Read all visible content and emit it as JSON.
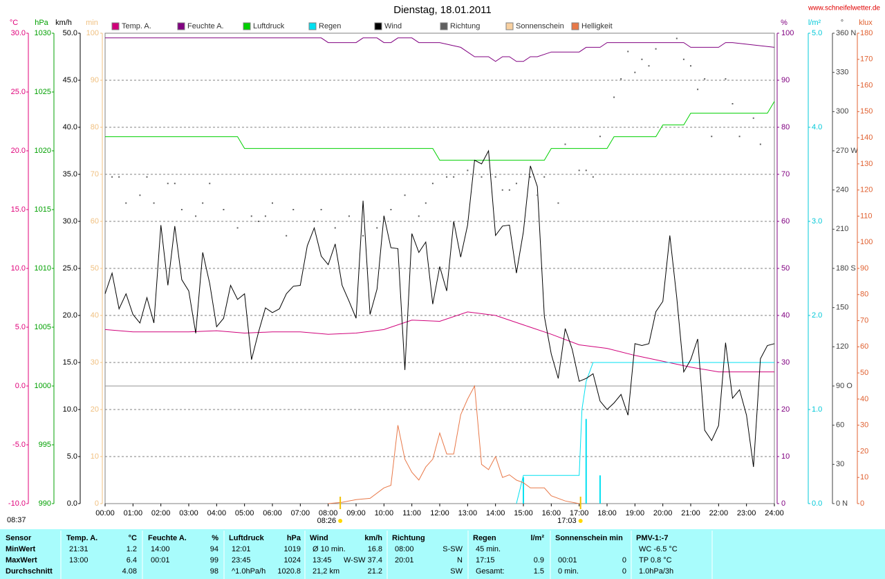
{
  "chart_data": {
    "type": "line",
    "title": "Dienstag, 18.01.2011",
    "site": "www.schneifelwetter.de",
    "updated": "08:37",
    "xlim": [
      0,
      24
    ],
    "xticks": [
      {
        "value": 0,
        "label": "00:00"
      },
      {
        "value": 1,
        "label": "01:00"
      },
      {
        "value": 2,
        "label": "02:00"
      },
      {
        "value": 3,
        "label": "03:00"
      },
      {
        "value": 4,
        "label": "04:00"
      },
      {
        "value": 5,
        "label": "05:00"
      },
      {
        "value": 6,
        "label": "06:00"
      },
      {
        "value": 7,
        "label": "07:00"
      },
      {
        "value": 8,
        "label": "08:00"
      },
      {
        "value": 9,
        "label": "09:00"
      },
      {
        "value": 10,
        "label": "10:00"
      },
      {
        "value": 11,
        "label": "11:00"
      },
      {
        "value": 12,
        "label": "12:00"
      },
      {
        "value": 13,
        "label": "13:00"
      },
      {
        "value": 14,
        "label": "14:00"
      },
      {
        "value": 15,
        "label": "15:00"
      },
      {
        "value": 16,
        "label": "16:00"
      },
      {
        "value": 17,
        "label": "17:00"
      },
      {
        "value": 18,
        "label": "18:00"
      },
      {
        "value": 19,
        "label": "19:00"
      },
      {
        "value": 20,
        "label": "20:00"
      },
      {
        "value": 21,
        "label": "21:00"
      },
      {
        "value": 22,
        "label": "22:00"
      },
      {
        "value": 23,
        "label": "23:00"
      },
      {
        "value": 24,
        "label": "24:00"
      }
    ],
    "axes": [
      {
        "unit": "°C",
        "side": "left",
        "color": "#e0007a",
        "lim": [
          -10,
          30
        ],
        "zero_line": true,
        "ticks": [
          {
            "value": 30,
            "label": "30.0"
          },
          {
            "value": 25,
            "label": "25.0"
          },
          {
            "value": 20,
            "label": "20.0"
          },
          {
            "value": 15,
            "label": "15.0"
          },
          {
            "value": 10,
            "label": "10.0"
          },
          {
            "value": 5,
            "label": "5.0"
          },
          {
            "value": 0,
            "label": "0.0"
          },
          {
            "value": -5,
            "label": "-5.0"
          },
          {
            "value": -10,
            "label": "-10.0"
          }
        ]
      },
      {
        "unit": "hPa",
        "side": "left",
        "color": "#00a000",
        "lim": [
          990,
          1030
        ],
        "ticks": [
          1030,
          1025,
          1020,
          1015,
          1010,
          1005,
          1000,
          995,
          990
        ]
      },
      {
        "unit": "km/h",
        "side": "left",
        "color": "#000000",
        "lim": [
          0,
          50
        ],
        "grid": true,
        "ticks": [
          {
            "value": 50,
            "label": "50.0"
          },
          {
            "value": 45,
            "label": "45.0"
          },
          {
            "value": 40,
            "label": "40.0"
          },
          {
            "value": 35,
            "label": "35.0"
          },
          {
            "value": 30,
            "label": "30.0"
          },
          {
            "value": 25,
            "label": "25.0"
          },
          {
            "value": 20,
            "label": "20.0"
          },
          {
            "value": 15,
            "label": "15.0"
          },
          {
            "value": 10,
            "label": "10.0"
          },
          {
            "value": 5,
            "label": "5.0"
          },
          {
            "value": 0,
            "label": "0.0"
          }
        ]
      },
      {
        "unit": "min",
        "side": "left",
        "color": "#f0c080",
        "lim": [
          0,
          100
        ],
        "ticks": [
          100,
          90,
          80,
          70,
          60,
          50,
          40,
          30,
          20,
          10,
          0
        ]
      },
      {
        "unit": "%",
        "side": "right",
        "color": "#800080",
        "lim": [
          0,
          100
        ],
        "ticks": [
          100,
          90,
          80,
          70,
          60,
          50,
          40,
          30,
          20,
          10,
          0
        ]
      },
      {
        "unit": "l/m²",
        "side": "right",
        "color": "#00c8d8",
        "lim": [
          0,
          5
        ],
        "ticks": [
          {
            "value": 5,
            "label": "5.0"
          },
          {
            "value": 4,
            "label": "4.0"
          },
          {
            "value": 3,
            "label": "3.0"
          },
          {
            "value": 2,
            "label": "2.0"
          },
          {
            "value": 1,
            "label": "1.0"
          },
          {
            "value": 0,
            "label": "0.0"
          }
        ]
      },
      {
        "unit": "°",
        "side": "right",
        "color": "#404040",
        "lim": [
          0,
          360
        ],
        "ticks": [
          {
            "value": 360,
            "label": "360 N"
          },
          330,
          300,
          {
            "value": 270,
            "label": "270 W"
          },
          240,
          210,
          {
            "value": 180,
            "label": "180 S"
          },
          150,
          120,
          {
            "value": 90,
            "label": "90 O"
          },
          60,
          30,
          {
            "value": 0,
            "label": "0 N"
          }
        ]
      },
      {
        "unit": "klux",
        "side": "right",
        "color": "#e06030",
        "lim": [
          0,
          180
        ],
        "ticks": [
          180,
          170,
          160,
          150,
          140,
          130,
          120,
          110,
          100,
          90,
          80,
          70,
          60,
          50,
          40,
          30,
          20,
          10,
          0
        ]
      }
    ],
    "series": [
      {
        "name": "Temp. A.",
        "color": "#d0007a",
        "axis": "°C",
        "style": "line",
        "x": [
          0,
          1,
          2,
          3,
          4,
          5,
          6,
          7,
          8,
          9,
          10,
          11,
          12,
          13,
          14,
          15,
          16,
          17,
          18,
          19,
          20,
          21,
          22,
          23,
          24
        ],
        "values": [
          4.8,
          4.6,
          4.6,
          4.6,
          4.7,
          4.5,
          4.6,
          4.6,
          4.4,
          4.5,
          4.8,
          5.6,
          5.5,
          6.3,
          6.0,
          5.2,
          4.4,
          3.5,
          3.2,
          2.6,
          2.1,
          1.6,
          1.2,
          1.2,
          1.2
        ]
      },
      {
        "name": "Feuchte A.",
        "color": "#800080",
        "axis": "%",
        "style": "line",
        "x": [
          0,
          7.75,
          8,
          9,
          9.25,
          9.75,
          10,
          10.25,
          10.5,
          11,
          11.25,
          12,
          12.75,
          13.25,
          13.75,
          14,
          14.25,
          14.5,
          14.75,
          15,
          15.25,
          15.5,
          16,
          16.25,
          17,
          17.25,
          17.75,
          18,
          18.5,
          20.75,
          21,
          22,
          22.25,
          22.5,
          24
        ],
        "values": [
          99,
          99,
          98,
          98,
          99,
          99,
          98,
          98,
          99,
          99,
          98,
          98,
          97,
          95,
          95,
          94,
          95,
          95,
          94,
          94,
          95,
          95,
          96,
          96,
          96,
          97,
          97,
          98,
          98,
          98,
          97,
          97,
          98,
          98,
          97
        ]
      },
      {
        "name": "Luftdruck",
        "color": "#00d000",
        "axis": "hPa",
        "style": "line",
        "x": [
          0,
          4.75,
          5,
          11.75,
          12,
          15.75,
          16,
          18,
          18.25,
          19.75,
          20,
          20.75,
          21,
          23.75,
          24
        ],
        "values": [
          1021.2,
          1021.2,
          1020.2,
          1020.2,
          1019.2,
          1019.2,
          1020.2,
          1020.2,
          1021.2,
          1021.2,
          1022.2,
          1022.2,
          1023.2,
          1023.2,
          1024.2
        ]
      },
      {
        "name": "Regen",
        "color": "#00e0f0",
        "axis": "l/m²",
        "style": "line",
        "x": [
          14.75,
          15,
          17,
          17.1,
          17.25,
          17.5,
          24
        ],
        "values": [
          0,
          0.3,
          0.3,
          1.0,
          1.3,
          1.5,
          1.5
        ],
        "bar_x": [
          15,
          17.25,
          17.75
        ],
        "bar_values": [
          0.28,
          0.9,
          0.3
        ]
      },
      {
        "name": "Wind",
        "color": "#000000",
        "axis": "km/h",
        "style": "line",
        "x": [
          0,
          0.25,
          0.5,
          0.75,
          1,
          1.25,
          1.5,
          1.75,
          2,
          2.25,
          2.5,
          2.75,
          3,
          3.25,
          3.5,
          3.75,
          4,
          4.25,
          4.5,
          4.75,
          5,
          5.25,
          5.5,
          5.75,
          6,
          6.25,
          6.5,
          6.75,
          7,
          7.25,
          7.5,
          7.75,
          8,
          8.25,
          8.5,
          8.75,
          9,
          9.25,
          9.5,
          9.75,
          10,
          10.25,
          10.5,
          10.75,
          11,
          11.25,
          11.5,
          11.75,
          12,
          12.25,
          12.5,
          12.75,
          13,
          13.25,
          13.5,
          13.75,
          14,
          14.25,
          14.5,
          14.75,
          15,
          15.25,
          15.5,
          15.75,
          16,
          16.25,
          16.5,
          16.75,
          17,
          17.25,
          17.5,
          17.75,
          18,
          18.25,
          18.5,
          18.75,
          19,
          19.25,
          19.5,
          19.75,
          20,
          20.25,
          20.5,
          20.75,
          21,
          21.25,
          21.5,
          21.75,
          22,
          22.25,
          22.5,
          22.75,
          23,
          23.25,
          23.5,
          23.75,
          24
        ],
        "values": [
          22.3,
          24.5,
          20.7,
          22.3,
          20.1,
          19.2,
          21.9,
          19.2,
          29.6,
          23.2,
          29.5,
          23.8,
          22.6,
          18.1,
          26.7,
          23.4,
          18.8,
          19.7,
          23.2,
          21.7,
          22.3,
          15.3,
          18.2,
          20.8,
          20.3,
          20.7,
          22.3,
          23.1,
          23.2,
          27.4,
          29.3,
          26.3,
          25.4,
          27.6,
          23.2,
          21.5,
          19.7,
          32.2,
          20.1,
          22.8,
          30.6,
          27.2,
          27.1,
          14.2,
          28.7,
          26.7,
          27.8,
          21.2,
          25.2,
          22.6,
          30.0,
          26.2,
          29.6,
          36.5,
          36.1,
          37.5,
          28.5,
          29.5,
          29.6,
          24.5,
          28.9,
          35.9,
          33.7,
          19.9,
          15.9,
          13.3,
          18.6,
          16.4,
          13.0,
          13.3,
          13.8,
          10.9,
          10.0,
          10.7,
          11.6,
          9.4,
          17.0,
          16.8,
          17.0,
          20.4,
          21.5,
          28.5,
          21.9,
          14.0,
          15.3,
          17.5,
          7.8,
          6.7,
          8.3,
          17.1,
          11.2,
          12.1,
          9.4,
          3.9,
          15.4,
          16.8,
          17.0
        ]
      },
      {
        "name": "Richtung",
        "color": "#606060",
        "axis": "°",
        "style": "dots",
        "x": [
          0.25,
          0.5,
          0.75,
          1.25,
          1.5,
          1.75,
          2.25,
          2.5,
          2.75,
          3.25,
          3.5,
          3.75,
          4.25,
          4.75,
          5.25,
          5.5,
          5.75,
          6,
          6.5,
          6.75,
          7.5,
          7.75,
          8.25,
          8.75,
          9.25,
          9.75,
          10.25,
          10.75,
          11.25,
          11.5,
          11.75,
          12.25,
          12.5,
          13,
          13.5,
          14,
          14.25,
          14.5,
          14.75,
          15.25,
          15.5,
          15.75,
          16.25,
          16.5,
          17,
          17.25,
          17.5,
          17.75,
          18.25,
          18.5,
          18.75,
          19,
          19.25,
          19.5,
          19.75,
          20.5,
          20.75,
          21,
          21.25,
          21.5,
          21.75,
          22.25,
          22.5,
          22.75,
          23.25,
          23.5
        ],
        "values": [
          250,
          250,
          230,
          236,
          250,
          230,
          245,
          245,
          225,
          220,
          230,
          245,
          225,
          211,
          220,
          216,
          220,
          230,
          205,
          225,
          216,
          225,
          211,
          220,
          205,
          211,
          225,
          236,
          220,
          230,
          245,
          250,
          250,
          255,
          250,
          250,
          240,
          240,
          245,
          250,
          236,
          250,
          230,
          275,
          255,
          255,
          250,
          281,
          311,
          325,
          346,
          330,
          340,
          335,
          348,
          356,
          340,
          335,
          317,
          325,
          281,
          325,
          306,
          281,
          295,
          275
        ]
      },
      {
        "name": "Sonnenschein",
        "color": "#f8d0a0",
        "axis": "min",
        "style": "line",
        "x": [],
        "values": []
      },
      {
        "name": "Helligkeit",
        "color": "#e87848",
        "axis": "klux",
        "style": "line",
        "x": [
          8,
          8.5,
          9,
          9.5,
          10,
          10.25,
          10.5,
          10.75,
          11,
          11.25,
          11.5,
          11.75,
          12,
          12.25,
          12.5,
          12.75,
          13,
          13.25,
          13.5,
          13.75,
          14,
          14.25,
          14.5,
          14.75,
          15,
          15.25,
          15.5,
          15.75,
          16,
          16.5,
          17
        ],
        "values": [
          0,
          0.5,
          1.5,
          2,
          6,
          7,
          30,
          17,
          12,
          9,
          14,
          17,
          27,
          19,
          19,
          34,
          40,
          45,
          15,
          13,
          18,
          10,
          11,
          9,
          8,
          6,
          6,
          6,
          3,
          1,
          0
        ]
      }
    ],
    "sun_events": [
      {
        "x": 8.433,
        "label": "08:26"
      },
      {
        "x": 17.05,
        "label": "17:03"
      }
    ]
  },
  "table": {
    "columns": [
      {
        "title": "Sensor"
      },
      {
        "title": "Temp. A.",
        "unit": "°C"
      },
      {
        "title": "Feuchte A.",
        "unit": "%"
      },
      {
        "title": "Luftdruck",
        "unit": "hPa"
      },
      {
        "title": "Wind",
        "unit": "km/h"
      },
      {
        "title": "Richtung"
      },
      {
        "title": "Regen",
        "unit": "l/m²"
      },
      {
        "title": "Sonnenschein min"
      },
      {
        "title": "PMV-1:-7"
      }
    ],
    "rows": [
      {
        "label": "MinWert",
        "cells": [
          {
            "l": "21:31",
            "r": "1.2"
          },
          {
            "l": "14:00",
            "r": "94"
          },
          {
            "l": "12:01",
            "r": "1019"
          },
          {
            "l": "Ø 10 min.",
            "r": "16.8"
          },
          {
            "l": "08:00",
            "r": "S-SW"
          },
          {
            "l": "45 min."
          },
          {},
          {
            "l": "WC -6.5 °C"
          }
        ]
      },
      {
        "label": "MaxWert",
        "cells": [
          {
            "l": "13:00",
            "r": "6.4"
          },
          {
            "l": "00:01",
            "r": "99"
          },
          {
            "l": "23:45",
            "r": "1024"
          },
          {
            "l": "13:45",
            "r": "W-SW 37.4"
          },
          {
            "l": "20:01",
            "r": "N"
          },
          {
            "l": "17:15",
            "r": "0.9"
          },
          {
            "l": "00:01",
            "r": "0"
          },
          {
            "l": "TP 0.8 °C"
          }
        ]
      },
      {
        "label": "Durchschnitt",
        "cells": [
          {
            "r": "4.08"
          },
          {
            "r": "98"
          },
          {
            "l": "^1.0hPa/h",
            "r": "1020.8"
          },
          {
            "l": "21,2 km",
            "r": "21.2"
          },
          {
            "r": "SW"
          },
          {
            "l": "Gesamt:",
            "r": "1.5"
          },
          {
            "l": "0 min.",
            "r": "0"
          },
          {
            "l": "1.0hPa/3h"
          }
        ]
      }
    ]
  }
}
